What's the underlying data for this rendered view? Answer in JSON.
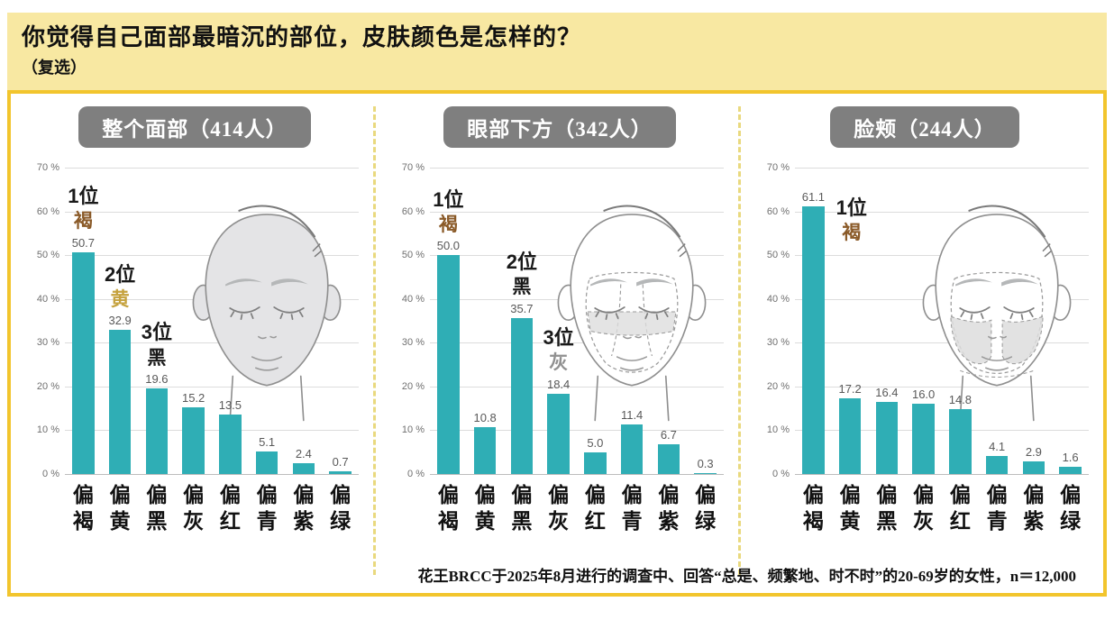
{
  "header": {
    "title": "你觉得自己面部最暗沉的部位，皮肤颜色是怎样的？",
    "subtitle": "（复选）"
  },
  "footnote": "花王BRCC于2025年8月进行的调查中、回答“总是、频繁地、时不时”的20-69岁的女性，n＝12,000",
  "colors": {
    "bar": "#2FAEB5",
    "panel_header_bg": "#7F7F7F",
    "title_band_bg": "#F8E8A2",
    "outer_border": "#F2C52D",
    "divider": "#E9D97E",
    "grid": "#DCDCDC",
    "axis_text": "#707070",
    "rank_brown": "#8A5A28",
    "rank_yellow": "#C5A23E",
    "rank_black": "#1A1A1A",
    "rank_gray": "#909090"
  },
  "y_axis": {
    "ticks": [
      "70 %",
      "60 %",
      "50 %",
      "40 %",
      "30 %",
      "20 %",
      "10 %",
      "0 %"
    ],
    "max": 70
  },
  "chart_data": [
    {
      "type": "bar",
      "title": "整个面部（414人）",
      "categories": [
        "偏褐",
        "偏黄",
        "偏黑",
        "偏灰",
        "偏红",
        "偏青",
        "偏紫",
        "偏绿"
      ],
      "values": [
        50.7,
        32.9,
        19.6,
        15.2,
        13.5,
        5.1,
        2.4,
        0.7
      ],
      "ylim": [
        0,
        70
      ],
      "grid": true,
      "ranks": [
        {
          "label": "1位",
          "color_name": "褐",
          "color": "#8A5A28",
          "bar_index": 0
        },
        {
          "label": "2位",
          "color_name": "黄",
          "color": "#C5A23E",
          "bar_index": 1
        },
        {
          "label": "3位",
          "color_name": "黑",
          "color": "#1A1A1A",
          "bar_index": 2
        }
      ],
      "face_variant": "whole-face-shaded"
    },
    {
      "type": "bar",
      "title": "眼部下方（342人）",
      "categories": [
        "偏褐",
        "偏黄",
        "偏黑",
        "偏灰",
        "偏红",
        "偏青",
        "偏紫",
        "偏绿"
      ],
      "values": [
        50.0,
        10.8,
        35.7,
        18.4,
        5.0,
        11.4,
        6.7,
        0.3
      ],
      "ylim": [
        0,
        70
      ],
      "grid": true,
      "ranks": [
        {
          "label": "1位",
          "color_name": "褐",
          "color": "#8A5A28",
          "bar_index": 0
        },
        {
          "label": "2位",
          "color_name": "黑",
          "color": "#1A1A1A",
          "bar_index": 2
        },
        {
          "label": "3位",
          "color_name": "灰",
          "color": "#909090",
          "bar_index": 3
        }
      ],
      "face_variant": "under-eye-shaded"
    },
    {
      "type": "bar",
      "title": "脸颊（244人）",
      "categories": [
        "偏褐",
        "偏黄",
        "偏黑",
        "偏灰",
        "偏红",
        "偏青",
        "偏紫",
        "偏绿"
      ],
      "values": [
        61.1,
        17.2,
        16.4,
        16.0,
        14.8,
        4.1,
        2.9,
        1.6
      ],
      "ylim": [
        0,
        70
      ],
      "grid": true,
      "ranks": [
        {
          "label": "1位",
          "color_name": "褐",
          "color": "#8A5A28",
          "bar_index": 0,
          "placement": "right"
        }
      ],
      "face_variant": "cheeks-shaded"
    }
  ]
}
